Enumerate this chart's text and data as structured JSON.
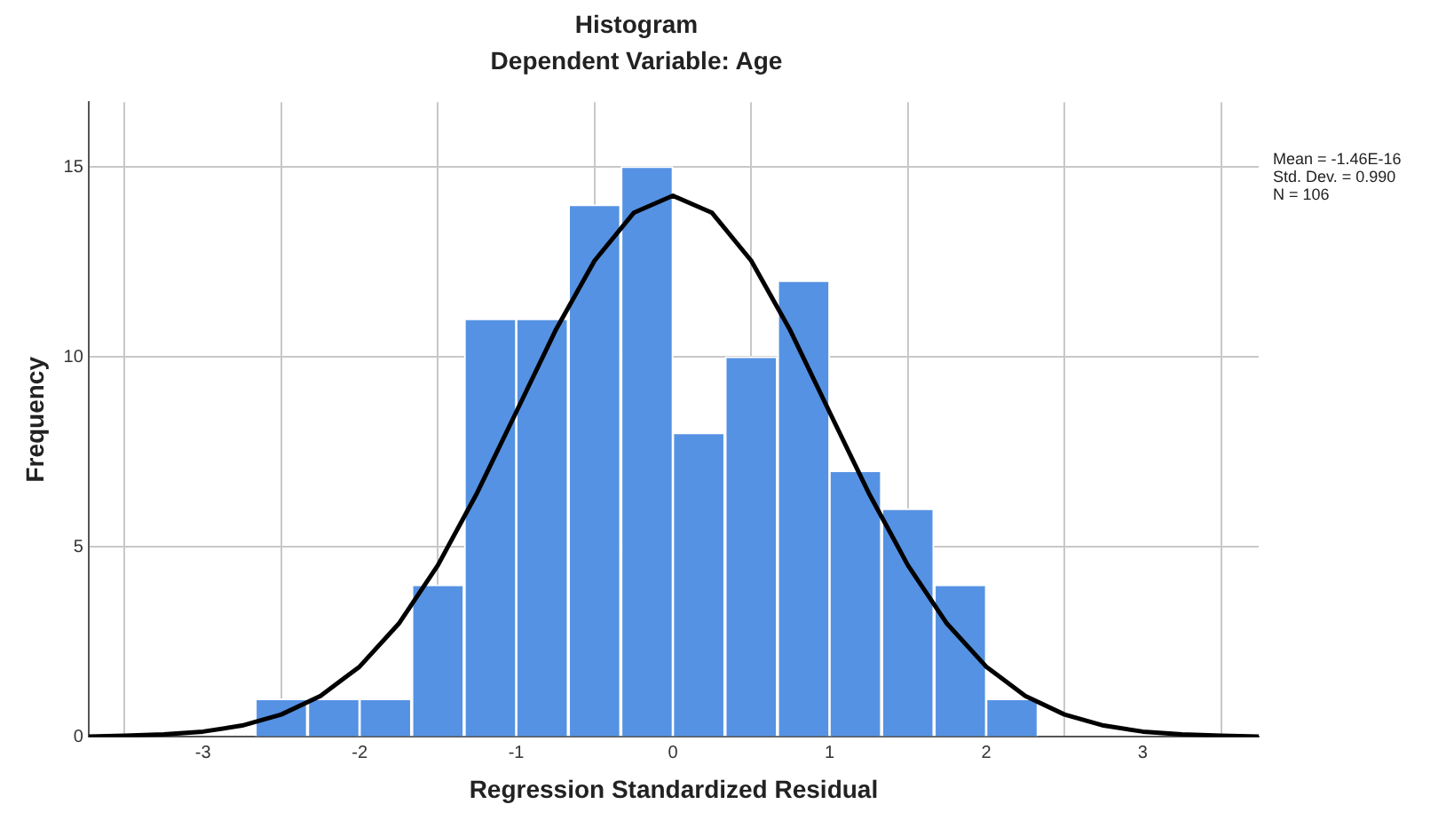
{
  "chart_data": {
    "type": "histogram",
    "title": "Histogram",
    "subtitle": "Dependent Variable: Age",
    "xlabel": "Regression Standardized Residual",
    "ylabel": "Frequency",
    "bins": [
      -2.67,
      -2.33,
      -2,
      -1.67,
      -1.33,
      -1,
      -0.67,
      -0.33,
      0,
      0.33,
      0.67,
      1,
      1.33,
      1.67,
      2,
      2.33
    ],
    "values": [
      1,
      1,
      1,
      4,
      11,
      11,
      14,
      15,
      8,
      10,
      12,
      7,
      6,
      4,
      1
    ],
    "color": "#5592e3",
    "series": [
      {
        "type": "line",
        "color": "#000000",
        "x": [
          -3.73,
          -3.5,
          -3.25,
          -3,
          -2.75,
          -2.5,
          -2.25,
          -2,
          -1.75,
          -1.5,
          -1.25,
          -1,
          -0.75,
          -0.5,
          -0.25,
          0,
          0.25,
          0.5,
          0.75,
          1,
          1.25,
          1.5,
          1.75,
          2,
          2.25,
          2.5,
          2.75,
          3,
          3.25,
          3.5,
          3.74
        ],
        "values": [
          0.01,
          0.03,
          0.07,
          0.14,
          0.3,
          0.59,
          1.08,
          1.85,
          2.98,
          4.52,
          6.42,
          8.55,
          10.69,
          12.53,
          13.79,
          14.24,
          13.79,
          12.53,
          10.69,
          8.55,
          6.42,
          4.52,
          2.98,
          1.85,
          1.08,
          0.59,
          0.3,
          0.14,
          0.07,
          0.03,
          0.01
        ]
      }
    ],
    "xlim": [
      -3.73,
      3.74
    ],
    "xticks": [
      -3,
      -2,
      -1,
      0,
      1,
      2,
      3
    ],
    "ylim": [
      0,
      16.7
    ],
    "yticks": [
      0,
      5,
      10,
      15
    ],
    "grid": true,
    "legend": false,
    "marker": "none",
    "line_style": "solid",
    "annotations": [
      "Mean = -1.46E-16",
      "Std. Dev. = 0.990",
      "N = 106"
    ]
  }
}
